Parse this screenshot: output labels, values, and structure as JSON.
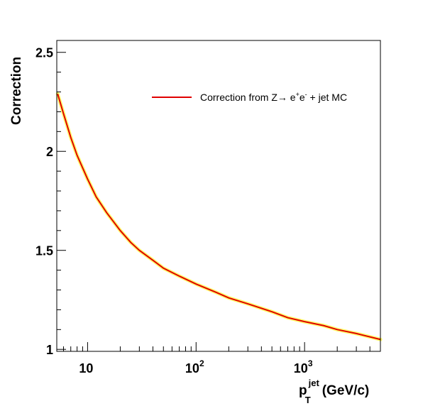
{
  "chart_data": {
    "type": "line",
    "xlabel": {
      "main": "p",
      "sup": "jet",
      "sub": "T",
      "unit": "(GeV/c)"
    },
    "ylabel": "Correction",
    "xscale": "log",
    "xlim": [
      5.2,
      5000
    ],
    "ylim": [
      0.99,
      2.56
    ],
    "y_ticks": [
      "1",
      "1.5",
      "2",
      "2.5"
    ],
    "x_tick_labels": [
      {
        "value": 10,
        "base": "10",
        "exp": ""
      },
      {
        "value": 100,
        "base": "10",
        "exp": "2"
      },
      {
        "value": 1000,
        "base": "10",
        "exp": "3"
      }
    ],
    "legend": {
      "position": "top-right",
      "entry": {
        "prefix": "Correction from Z",
        "arrow": "→",
        "e1": " e",
        "plus": "+",
        "e2": "e",
        "minus": "-",
        "suffix": " + jet MC"
      }
    },
    "colors": {
      "line": "#e00000",
      "band": "#ffff66",
      "axis": "#000000"
    },
    "series": [
      {
        "x": [
          5.3,
          6,
          7,
          8,
          10,
          12,
          15,
          20,
          25,
          30,
          40,
          50,
          70,
          100,
          150,
          200,
          300,
          500,
          700,
          1000,
          1500,
          2000,
          3000,
          5000
        ],
        "y": [
          2.29,
          2.19,
          2.07,
          1.98,
          1.86,
          1.77,
          1.69,
          1.6,
          1.54,
          1.5,
          1.45,
          1.41,
          1.37,
          1.33,
          1.29,
          1.26,
          1.23,
          1.19,
          1.16,
          1.14,
          1.12,
          1.1,
          1.08,
          1.05
        ]
      }
    ]
  }
}
